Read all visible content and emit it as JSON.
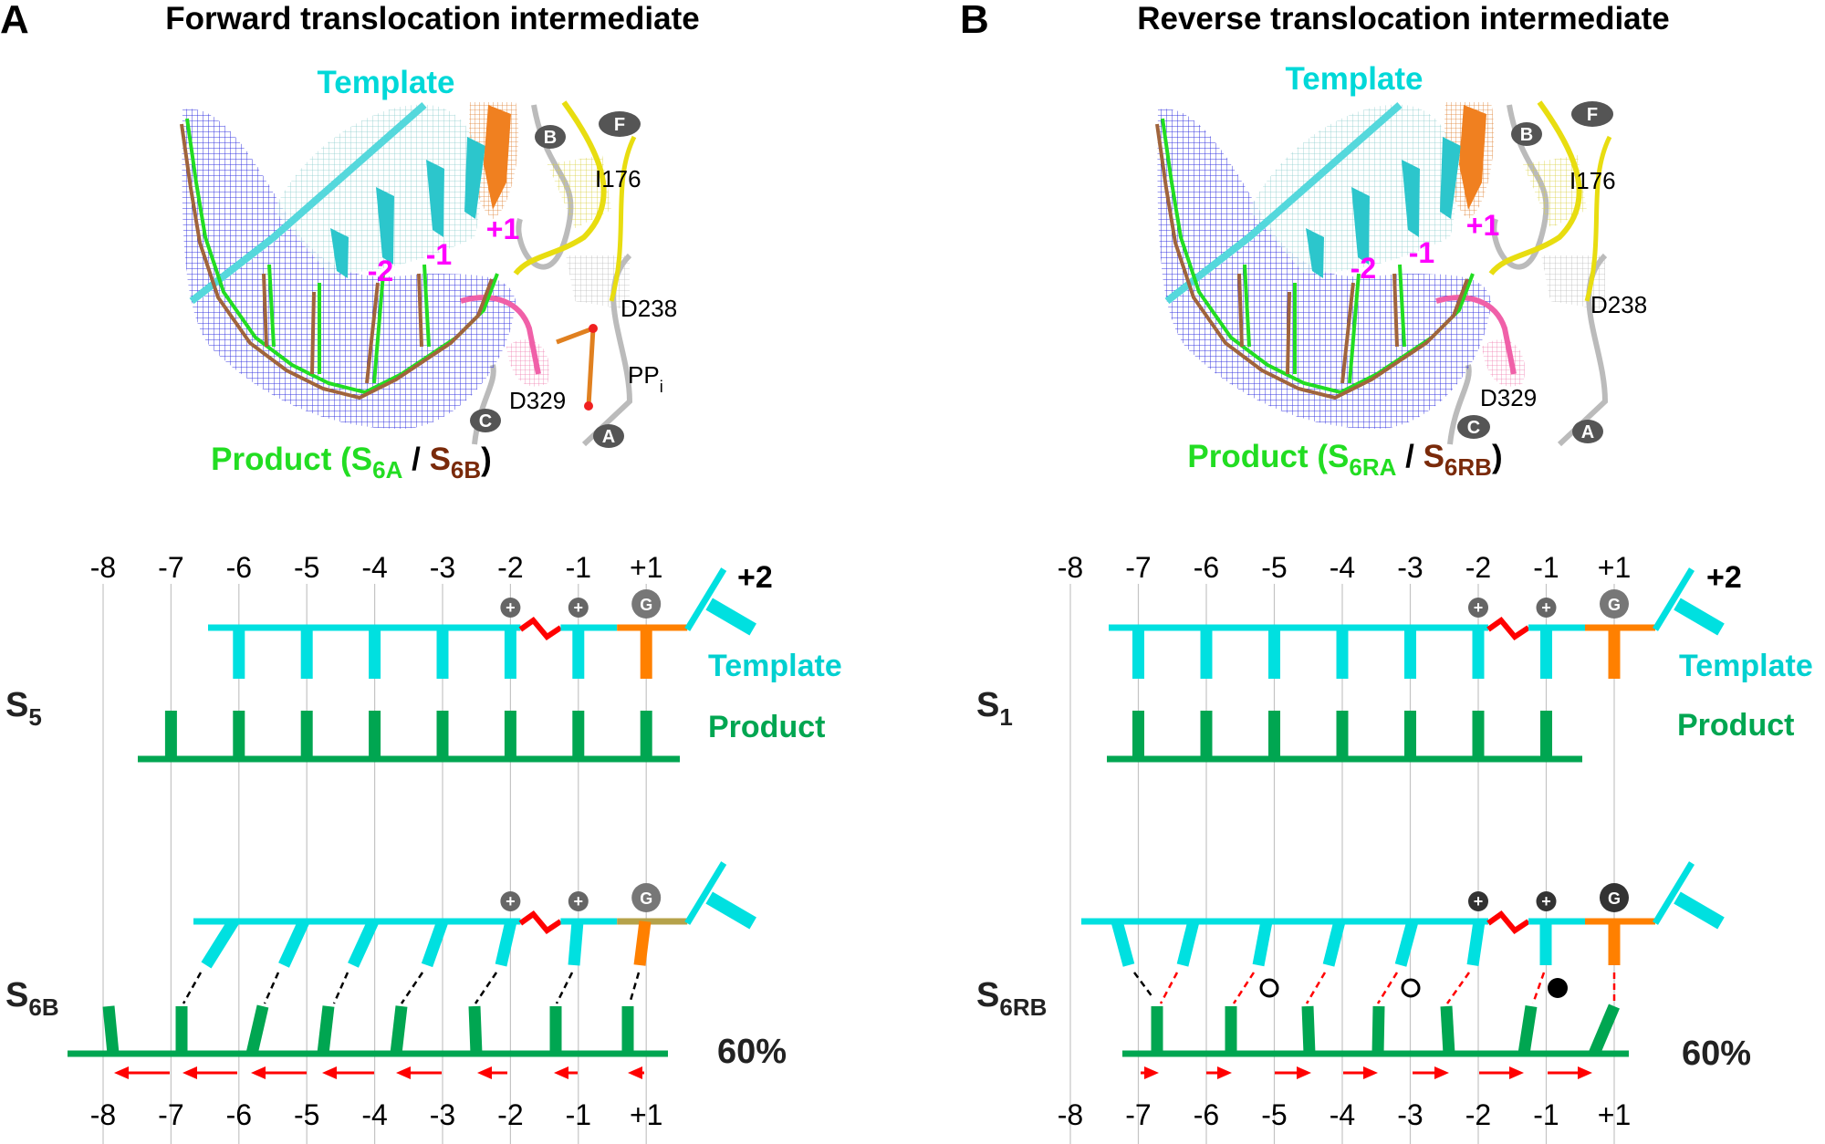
{
  "colors": {
    "template": "#00e0e0",
    "template_text": "#00d0d0",
    "product": "#00a651",
    "product_struct": "#22dd22",
    "product_alt": "#7a2a0a",
    "nascent_base": "#ff8000",
    "nascent_backbone_s6b": "#b5a24a",
    "kink": "#ff0000",
    "arrow": "#ff0000",
    "nt_label": "#ff00ff",
    "circle": "#666666",
    "circle_dark": "#333333"
  },
  "panels": [
    {
      "letter": "A",
      "title": "Forward translocation intermediate",
      "structure": {
        "template_label": "Template",
        "nt_labels": [
          "-2",
          "-1",
          "+1"
        ],
        "motifs": [
          "B",
          "F",
          "C",
          "A"
        ],
        "residues": [
          "I176",
          "D238",
          "D329"
        ],
        "ligand": {
          "main": "PP",
          "sub": "i"
        },
        "caption": {
          "prefix": "Product (",
          "a_main": "S",
          "a_sub": "6A",
          "sep": " / ",
          "b_main": "S",
          "b_sub": "6B",
          "suffix": ")"
        }
      },
      "schematic": {
        "positions_top": [
          "-8",
          "-7",
          "-6",
          "-5",
          "-4",
          "-3",
          "-2",
          "-1",
          "+1"
        ],
        "positions_bottom": [
          "-8",
          "-7",
          "-6",
          "-5",
          "-4",
          "-3",
          "-2",
          "-1",
          "+1"
        ],
        "downstream_label": "+2",
        "template_label": "Template",
        "product_label": "Product",
        "state_top": {
          "main": "S",
          "sub": "5"
        },
        "state_bottom": {
          "main": "S",
          "sub": "6B"
        },
        "percent": "60%",
        "circle_labels": [
          "+",
          "+",
          "G"
        ],
        "arrow_direction": "left"
      }
    },
    {
      "letter": "B",
      "title": "Reverse translocation intermediate",
      "structure": {
        "template_label": "Template",
        "nt_labels": [
          "-2",
          "-1",
          "+1"
        ],
        "motifs": [
          "B",
          "F",
          "C",
          "A"
        ],
        "residues": [
          "I176",
          "D238",
          "D329"
        ],
        "caption": {
          "prefix": "Product (",
          "a_main": "S",
          "a_sub": "6RA",
          "sep": " / ",
          "b_main": "S",
          "b_sub": "6RB",
          "suffix": ")"
        }
      },
      "schematic": {
        "positions_top": [
          "-8",
          "-7",
          "-6",
          "-5",
          "-4",
          "-3",
          "-2",
          "-1",
          "+1"
        ],
        "positions_bottom": [
          "-8",
          "-7",
          "-6",
          "-5",
          "-4",
          "-3",
          "-2",
          "-1",
          "+1"
        ],
        "downstream_label": "+2",
        "template_label": "Template",
        "product_label": "Product",
        "state_top": {
          "main": "S",
          "sub": "1"
        },
        "state_bottom": {
          "main": "S",
          "sub": "6RB"
        },
        "percent": "60%",
        "circle_labels": [
          "+",
          "+",
          "G"
        ],
        "arrow_direction": "right"
      }
    }
  ]
}
